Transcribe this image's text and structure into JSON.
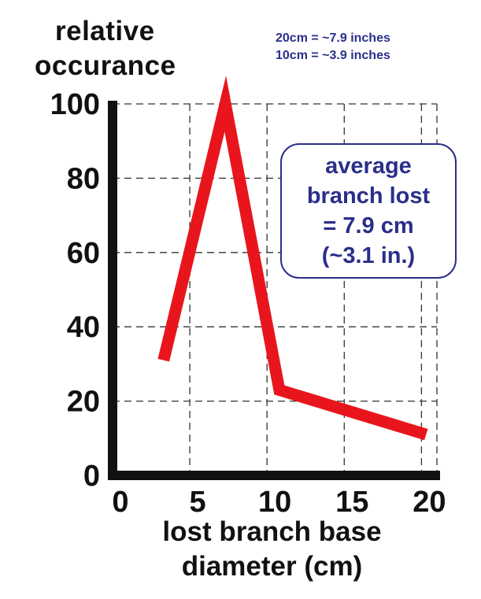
{
  "colors": {
    "line": "#e8161c",
    "axis": "#111111",
    "grid": "#333333",
    "note": "#2a2f8a"
  },
  "notes": [
    "20cm = ~7.9 inches",
    "10cm = ~3.9 inches"
  ],
  "callout": {
    "lines": [
      "average",
      "branch lost",
      "= 7.9 cm",
      "(~3.1 in.)"
    ]
  },
  "chart_data": {
    "type": "line",
    "title": "",
    "ylabel_lines": [
      "relative",
      "occurance"
    ],
    "xlabel_lines": [
      "lost branch base",
      "diameter (cm)"
    ],
    "xlim": [
      0,
      21
    ],
    "ylim": [
      0,
      100
    ],
    "xticks": [
      0,
      5,
      10,
      15,
      20
    ],
    "yticks": [
      0,
      20,
      40,
      60,
      80,
      100
    ],
    "grid": true,
    "series": [
      {
        "x": [
          3.3,
          7.3,
          10.8,
          20.3
        ],
        "y": [
          31,
          100,
          23,
          11
        ]
      }
    ]
  }
}
